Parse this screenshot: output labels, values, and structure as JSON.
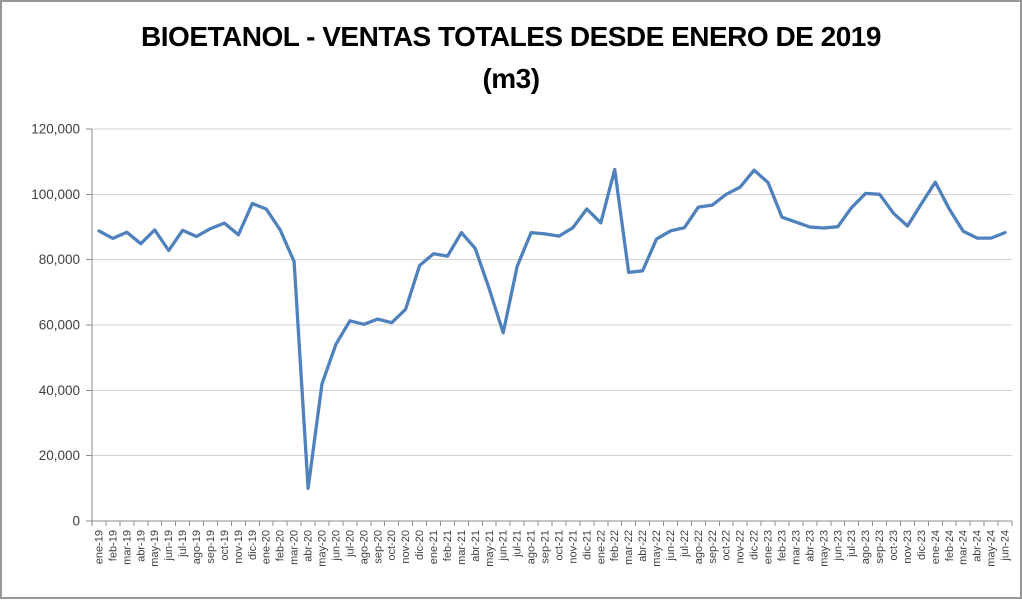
{
  "window": {
    "background": "#FFFFFF",
    "border_color": "#979797"
  },
  "title": {
    "line1": "BIOETANOL - VENTAS TOTALES DESDE ENERO DE 2019",
    "line2": "(m3)"
  },
  "colors": {
    "line": "#4F81BD",
    "gridline": "#D3D3D3",
    "axis": "#8C8C8C",
    "label_text": "#3F3F3F",
    "title_text": "#000000"
  },
  "chart_data": {
    "type": "line",
    "title": "BIOETANOL - VENTAS TOTALES DESDE ENERO DE 2019 (m3)",
    "xlabel": "",
    "ylabel": "",
    "ylim": [
      0,
      120000
    ],
    "ytick_interval": 20000,
    "ytick_labels": [
      "0",
      "20,000",
      "40,000",
      "60,000",
      "80,000",
      "100,000",
      "120,000"
    ],
    "grid": true,
    "legend": false,
    "categories": [
      "ene-19",
      "feb-19",
      "mar-19",
      "abr-19",
      "may-19",
      "jun-19",
      "jul-19",
      "ago-19",
      "sep-19",
      "oct-19",
      "nov-19",
      "dic-19",
      "ene-20",
      "feb-20",
      "mar-20",
      "abr-20",
      "may-20",
      "jun-20",
      "jul-20",
      "ago-20",
      "sep-20",
      "oct-20",
      "nov-20",
      "dic-20",
      "ene-21",
      "feb-21",
      "mar-21",
      "abr-21",
      "may-21",
      "jun-21",
      "jul-21",
      "ago-21",
      "sep-21",
      "oct-21",
      "nov-21",
      "dic-21",
      "ene-22",
      "feb-22",
      "mar-22",
      "abr-22",
      "may-22",
      "jun-22",
      "jul-22",
      "ago-22",
      "sep-22",
      "oct-22",
      "nov-22",
      "dic-22",
      "ene-23",
      "feb-23",
      "mar-23",
      "abr-23",
      "may-23",
      "jun-23",
      "jul-23",
      "ago-23",
      "sep-23",
      "oct-23",
      "nov-23",
      "dic-23",
      "ene-24",
      "feb-24",
      "mar-24",
      "abr-24",
      "may-24",
      "jun-24"
    ],
    "values": [
      88800,
      86500,
      88400,
      84900,
      89100,
      82800,
      89000,
      87100,
      89500,
      91200,
      87600,
      97200,
      95500,
      89100,
      79400,
      10000,
      42000,
      54100,
      61300,
      60200,
      61800,
      60700,
      64800,
      78200,
      81800,
      81100,
      88300,
      83400,
      71000,
      57600,
      78000,
      88300,
      87900,
      87200,
      89800,
      95500,
      91300,
      107600,
      76100,
      76600,
      86300,
      88800,
      89800,
      96100,
      96700,
      100000,
      102200,
      107400,
      103600,
      93000,
      91500,
      90000,
      89700,
      90100,
      96000,
      100300,
      100000,
      94200,
      90300,
      97100,
      103700,
      95500,
      88700,
      86600,
      86600,
      88300
    ]
  }
}
